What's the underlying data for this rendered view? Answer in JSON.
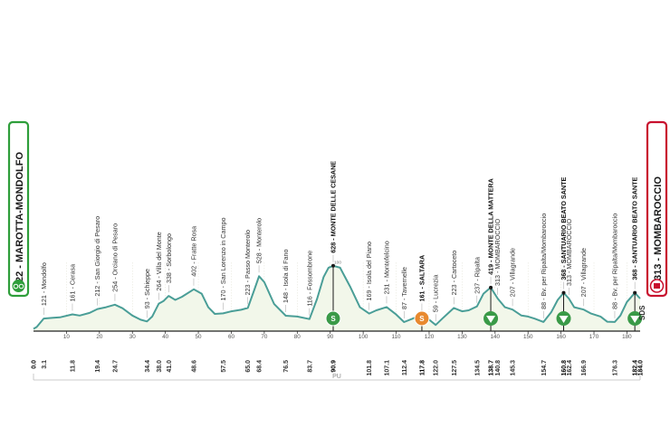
{
  "colors": {
    "profile_line": "#4a9e97",
    "profile_fill": "#f2f7ea",
    "start": "#2e9e3a",
    "finish": "#c8102e",
    "gpm": "#3a9a48",
    "sprint": "#e8892f",
    "axis": "#222222"
  },
  "start_label": "22 - MAROTTA-MONDOLFO",
  "finish_label": "313 - MOMBAROCCIO",
  "region_label": "PU",
  "sponsor_mark": "SDS",
  "chart_data": {
    "type": "area",
    "xlim": [
      0,
      184
    ],
    "ylim": [
      0,
      700
    ],
    "x_ticks": [
      10,
      20,
      30,
      40,
      50,
      60,
      70,
      80,
      90,
      100,
      110,
      120,
      130,
      140,
      150,
      160,
      170,
      180
    ],
    "altitude_ticks": [
      10,
      20,
      30,
      40,
      50,
      60,
      70,
      80,
      90,
      100
    ],
    "profile": [
      [
        0.0,
        22
      ],
      [
        1,
        40
      ],
      [
        3.1,
        121
      ],
      [
        6,
        128
      ],
      [
        8,
        132
      ],
      [
        11.8,
        161
      ],
      [
        14,
        150
      ],
      [
        17,
        175
      ],
      [
        19.4,
        212
      ],
      [
        22,
        230
      ],
      [
        24.7,
        254
      ],
      [
        27,
        220
      ],
      [
        30,
        150
      ],
      [
        32.5,
        110
      ],
      [
        34.4,
        93
      ],
      [
        36,
        140
      ],
      [
        38.0,
        264
      ],
      [
        39.5,
        290
      ],
      [
        41.0,
        338
      ],
      [
        43,
        300
      ],
      [
        45,
        330
      ],
      [
        48.6,
        402
      ],
      [
        51,
        360
      ],
      [
        53,
        230
      ],
      [
        55,
        165
      ],
      [
        57.5,
        170
      ],
      [
        60,
        190
      ],
      [
        63,
        205
      ],
      [
        65.0,
        223
      ],
      [
        67,
        400
      ],
      [
        68.4,
        528
      ],
      [
        70,
        470
      ],
      [
        73,
        260
      ],
      [
        76.5,
        148
      ],
      [
        80,
        140
      ],
      [
        83.7,
        116
      ],
      [
        86,
        310
      ],
      [
        88,
        520
      ],
      [
        89.5,
        610
      ],
      [
        90.9,
        628
      ],
      [
        93,
        610
      ],
      [
        96,
        430
      ],
      [
        99,
        230
      ],
      [
        101.8,
        169
      ],
      [
        104,
        200
      ],
      [
        107.1,
        231
      ],
      [
        110,
        160
      ],
      [
        112.4,
        87
      ],
      [
        115,
        120
      ],
      [
        117.8,
        161
      ],
      [
        120,
        110
      ],
      [
        122,
        59
      ],
      [
        124,
        120
      ],
      [
        127.5,
        223
      ],
      [
        130,
        190
      ],
      [
        132,
        200
      ],
      [
        134.5,
        237
      ],
      [
        136.5,
        360
      ],
      [
        138.7,
        419
      ],
      [
        140.8,
        313
      ],
      [
        143,
        230
      ],
      [
        145.3,
        207
      ],
      [
        148,
        150
      ],
      [
        150,
        140
      ],
      [
        152,
        120
      ],
      [
        154.7,
        88
      ],
      [
        157,
        180
      ],
      [
        159,
        300
      ],
      [
        160.8,
        368
      ],
      [
        162.4,
        313
      ],
      [
        164,
        230
      ],
      [
        166.9,
        207
      ],
      [
        169,
        170
      ],
      [
        172,
        140
      ],
      [
        174,
        90
      ],
      [
        176.3,
        88
      ],
      [
        178,
        150
      ],
      [
        180,
        280
      ],
      [
        182.4,
        368
      ],
      [
        184.0,
        313
      ]
    ],
    "waypoints": [
      {
        "km": "0.0",
        "x": 0.0,
        "label": "",
        "alt": 22,
        "bold": true
      },
      {
        "km": "3.1",
        "x": 3.1,
        "label": "121 - Mondolfo",
        "alt": 121,
        "bold": false
      },
      {
        "km": "11.8",
        "x": 11.8,
        "label": "161 - Cerasa",
        "alt": 161,
        "bold": false
      },
      {
        "km": "19.4",
        "x": 19.4,
        "label": "212 - San Giorgio di Pesaro",
        "alt": 212,
        "bold": false
      },
      {
        "km": "24.7",
        "x": 24.7,
        "label": "254 - Orciano di Pesaro",
        "alt": 254,
        "bold": false
      },
      {
        "km": "34.4",
        "x": 34.4,
        "label": "93 - Schieppe",
        "alt": 93,
        "bold": false
      },
      {
        "km": "38.0",
        "x": 38.0,
        "label": "264 - Villa del Monte",
        "alt": 264,
        "bold": false
      },
      {
        "km": "41.0",
        "x": 41.0,
        "label": "338 - Sorbolongo",
        "alt": 338,
        "bold": false
      },
      {
        "km": "48.6",
        "x": 48.6,
        "label": "402 - Fratte Rosa",
        "alt": 402,
        "bold": false
      },
      {
        "km": "57.5",
        "x": 57.5,
        "label": "170 - San Lorenzo in Campo",
        "alt": 170,
        "bold": false
      },
      {
        "km": "65.0",
        "x": 65.0,
        "label": "223 - Passo Monterolo",
        "alt": 223,
        "bold": false
      },
      {
        "km": "68.4",
        "x": 68.4,
        "label": "528 - Monterolo",
        "alt": 528,
        "bold": false
      },
      {
        "km": "76.5",
        "x": 76.5,
        "label": "148 - Isola di Fano",
        "alt": 148,
        "bold": false
      },
      {
        "km": "83.7",
        "x": 83.7,
        "label": "116 - Fossombrone",
        "alt": 116,
        "bold": false
      },
      {
        "km": "90.9",
        "x": 90.9,
        "label": "628 - MONTE DELLE CESANE",
        "alt": 628,
        "bold": true
      },
      {
        "km": "101.8",
        "x": 101.8,
        "label": "169 - Isola del Piano",
        "alt": 169,
        "bold": false
      },
      {
        "km": "107.1",
        "x": 107.1,
        "label": "231 - Montefelcino",
        "alt": 231,
        "bold": false
      },
      {
        "km": "112.4",
        "x": 112.4,
        "label": "87 - Tavernelle",
        "alt": 87,
        "bold": false
      },
      {
        "km": "117.8",
        "x": 117.8,
        "label": "161 - SALTARA",
        "alt": 161,
        "bold": true
      },
      {
        "km": "122.0",
        "x": 122.0,
        "label": "59 - Lucrezia",
        "alt": 59,
        "bold": false
      },
      {
        "km": "127.5",
        "x": 127.5,
        "label": "223 - Cartoceto",
        "alt": 223,
        "bold": false
      },
      {
        "km": "134.5",
        "x": 134.5,
        "label": "237 - Ripalta",
        "alt": 237,
        "bold": false
      },
      {
        "km": "138.7",
        "x": 138.7,
        "label": "419 - MONTE DELLA MATTERA",
        "alt": 419,
        "bold": true
      },
      {
        "km": "140.8",
        "x": 140.8,
        "label": "313 - MOMBAROCCIO",
        "alt": 313,
        "bold": false
      },
      {
        "km": "145.3",
        "x": 145.3,
        "label": "207 - Villagrande",
        "alt": 207,
        "bold": false
      },
      {
        "km": "154.7",
        "x": 154.7,
        "label": "88 - Bv. per Ripalta/Mombaroccio",
        "alt": 88,
        "bold": false
      },
      {
        "km": "160.8",
        "x": 160.8,
        "label": "368 - SANTUARIO BEATO SANTE",
        "alt": 368,
        "bold": true
      },
      {
        "km": "162.4",
        "x": 162.4,
        "label": "313 - MOMBAROCCIO",
        "alt": 313,
        "bold": false
      },
      {
        "km": "166.9",
        "x": 166.9,
        "label": "207 - Villagrande",
        "alt": 207,
        "bold": false
      },
      {
        "km": "176.3",
        "x": 176.3,
        "label": "88 - Bv. per Ripalta/Mombaroccio",
        "alt": 88,
        "bold": false
      },
      {
        "km": "182.4",
        "x": 182.4,
        "label": "368 - SANTUARIO BEATO SANTE",
        "alt": 368,
        "bold": true
      },
      {
        "km": "184.0",
        "x": 184.0,
        "label": "",
        "alt": 313,
        "bold": true
      }
    ],
    "markers": [
      {
        "x": 90.9,
        "kind": "gpm-circle",
        "letter": "S"
      },
      {
        "x": 117.8,
        "kind": "sprint",
        "letter": "S"
      },
      {
        "x": 138.7,
        "kind": "gpm-triangle",
        "letter": ""
      },
      {
        "x": 160.8,
        "kind": "gpm-triangle",
        "letter": ""
      },
      {
        "x": 182.4,
        "kind": "gpm-triangle",
        "letter": ""
      }
    ]
  }
}
